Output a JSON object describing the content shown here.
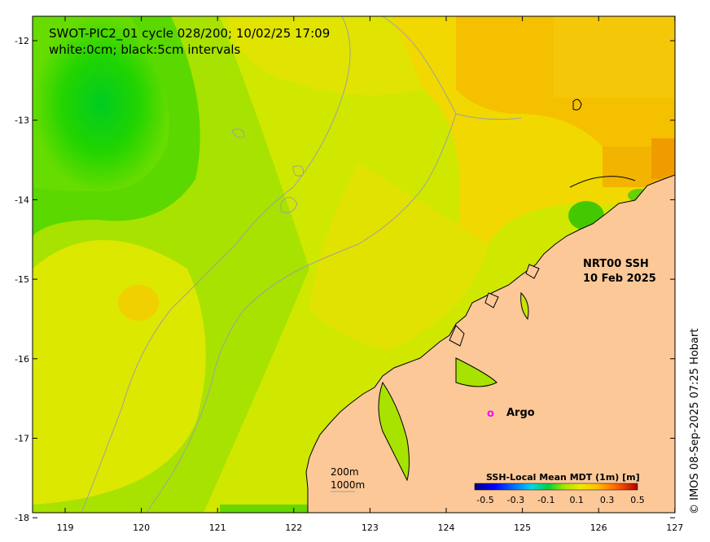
{
  "title": {
    "line1": "SWOT-PIC2_01 cycle 028/200; 10/02/25 17:09",
    "line2": "white:0cm; black:5cm intervals"
  },
  "axes": {
    "x_ticks": [
      "119",
      "120",
      "121",
      "122",
      "123",
      "124",
      "125",
      "126",
      "127"
    ],
    "y_ticks": [
      "-12",
      "-13",
      "-14",
      "-15",
      "-16",
      "-17",
      "-18"
    ]
  },
  "annotation": {
    "product_line1": "NRT00 SSH",
    "product_line2": "10 Feb 2025",
    "argo_marker": "o",
    "argo_label": "Argo"
  },
  "depth_legend": {
    "contour_200": "200m",
    "contour_1000": "1000m"
  },
  "colorbar": {
    "title": "SSH-Local Mean MDT (1m) [m]",
    "tick_labels": [
      "-0.5",
      "-0.3",
      "-0.1",
      "0.1",
      "0.3",
      "0.5"
    ],
    "colors": [
      "#000080",
      "#0000ff",
      "#0070ff",
      "#00c8ff",
      "#00e0a0",
      "#00d020",
      "#7ee000",
      "#d8e800",
      "#ffd000",
      "#ff9000",
      "#ff4000",
      "#c00000"
    ]
  },
  "credit": "© IMOS 08-Sep-2025 07:25 Hobart",
  "colors": {
    "land": "#fcc898",
    "argo": "#ff00ff",
    "depth_contour": "#a0a0a0"
  }
}
